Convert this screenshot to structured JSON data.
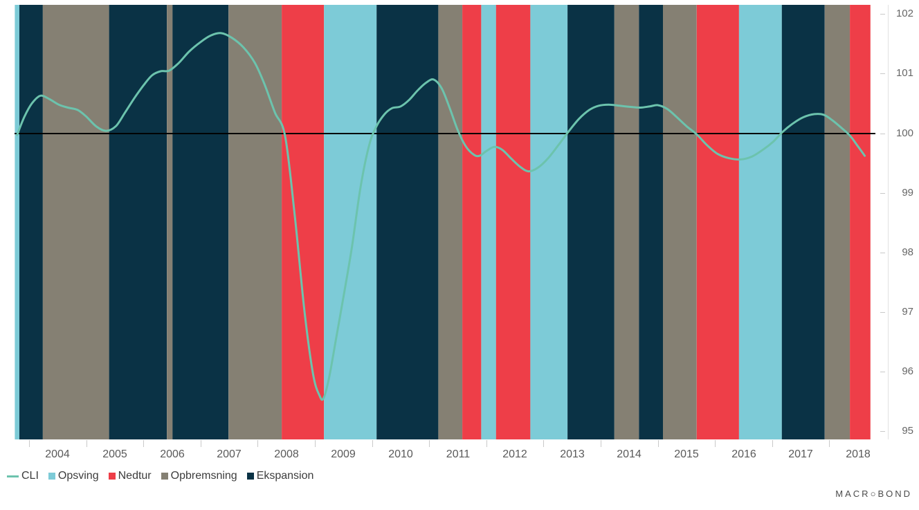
{
  "branding": {
    "prefix": "MACR",
    "circle": "○",
    "suffix": "BOND"
  },
  "legend": {
    "items": [
      {
        "label": "CLI",
        "swatch": "line",
        "color": "#6cc3ad"
      },
      {
        "label": "Opsving",
        "swatch": "square",
        "color": "#7dcbd7"
      },
      {
        "label": "Nedtur",
        "swatch": "square",
        "color": "#ee3e48"
      },
      {
        "label": "Opbremsning",
        "swatch": "square",
        "color": "#858073"
      },
      {
        "label": "Ekspansion",
        "swatch": "square",
        "color": "#0a3245"
      }
    ]
  },
  "chart_data": {
    "type": "line",
    "title": "",
    "xlabel": "",
    "ylabel": "",
    "grid": false,
    "legend_position": "bottom-left",
    "x_axis": {
      "tick_labels": [
        "2004",
        "2005",
        "2006",
        "2007",
        "2008",
        "2009",
        "2010",
        "2011",
        "2012",
        "2013",
        "2014",
        "2015",
        "2016",
        "2017",
        "2018"
      ],
      "range": [
        2003.75,
        2018.72
      ]
    },
    "y_axis": {
      "tick_labels": [
        "102",
        "101",
        "100",
        "99",
        "98",
        "97",
        "96",
        "95"
      ],
      "tick_values": [
        102,
        101,
        100,
        99,
        98,
        97,
        96,
        95
      ],
      "range": [
        94.86,
        102.15
      ],
      "side": "right"
    },
    "reference_line": {
      "value": 100,
      "color": "#000000"
    },
    "phase_colors": {
      "Opsving": "#7dcbd7",
      "Nedtur": "#ee3e48",
      "Opbremsning": "#858073",
      "Ekspansion": "#0a3245"
    },
    "bands": [
      {
        "phase": "Opsving",
        "from": 2003.75,
        "to": 2003.83
      },
      {
        "phase": "Ekspansion",
        "from": 2003.83,
        "to": 2004.24
      },
      {
        "phase": "Opbremsning",
        "from": 2004.24,
        "to": 2005.4
      },
      {
        "phase": "Ekspansion",
        "from": 2005.4,
        "to": 2006.41
      },
      {
        "phase": "Opbremsning",
        "from": 2006.41,
        "to": 2006.51
      },
      {
        "phase": "Ekspansion",
        "from": 2006.51,
        "to": 2007.49
      },
      {
        "phase": "Opbremsning",
        "from": 2007.49,
        "to": 2008.42
      },
      {
        "phase": "Nedtur",
        "from": 2008.42,
        "to": 2009.16
      },
      {
        "phase": "Opsving",
        "from": 2009.16,
        "to": 2010.08
      },
      {
        "phase": "Ekspansion",
        "from": 2010.08,
        "to": 2011.16
      },
      {
        "phase": "Opbremsning",
        "from": 2011.16,
        "to": 2011.58
      },
      {
        "phase": "Nedtur",
        "from": 2011.58,
        "to": 2011.91
      },
      {
        "phase": "Opsving",
        "from": 2011.91,
        "to": 2012.17
      },
      {
        "phase": "Nedtur",
        "from": 2012.17,
        "to": 2012.77
      },
      {
        "phase": "Opsving",
        "from": 2012.77,
        "to": 2013.42
      },
      {
        "phase": "Ekspansion",
        "from": 2013.42,
        "to": 2014.24
      },
      {
        "phase": "Opbremsning",
        "from": 2014.24,
        "to": 2014.67
      },
      {
        "phase": "Ekspansion",
        "from": 2014.67,
        "to": 2015.09
      },
      {
        "phase": "Opbremsning",
        "from": 2015.09,
        "to": 2015.68
      },
      {
        "phase": "Nedtur",
        "from": 2015.68,
        "to": 2016.42
      },
      {
        "phase": "Opsving",
        "from": 2016.42,
        "to": 2017.17
      },
      {
        "phase": "Ekspansion",
        "from": 2017.17,
        "to": 2017.92
      },
      {
        "phase": "Opbremsning",
        "from": 2017.92,
        "to": 2018.36
      },
      {
        "phase": "Nedtur",
        "from": 2018.36,
        "to": 2018.72
      }
    ],
    "series": [
      {
        "name": "CLI",
        "color": "#6cc3ad",
        "width": 3,
        "points": [
          [
            2003.79,
            99.97
          ],
          [
            2003.92,
            100.28
          ],
          [
            2004.05,
            100.5
          ],
          [
            2004.2,
            100.63
          ],
          [
            2004.36,
            100.57
          ],
          [
            2004.52,
            100.48
          ],
          [
            2004.68,
            100.43
          ],
          [
            2004.85,
            100.39
          ],
          [
            2005.0,
            100.28
          ],
          [
            2005.18,
            100.11
          ],
          [
            2005.35,
            100.04
          ],
          [
            2005.52,
            100.12
          ],
          [
            2005.68,
            100.35
          ],
          [
            2005.85,
            100.6
          ],
          [
            2006.0,
            100.8
          ],
          [
            2006.15,
            100.97
          ],
          [
            2006.3,
            101.04
          ],
          [
            2006.45,
            101.05
          ],
          [
            2006.62,
            101.18
          ],
          [
            2006.8,
            101.37
          ],
          [
            2007.0,
            101.53
          ],
          [
            2007.18,
            101.64
          ],
          [
            2007.36,
            101.68
          ],
          [
            2007.55,
            101.6
          ],
          [
            2007.75,
            101.44
          ],
          [
            2007.95,
            101.18
          ],
          [
            2008.12,
            100.82
          ],
          [
            2008.3,
            100.35
          ],
          [
            2008.48,
            99.95
          ],
          [
            2008.65,
            98.6
          ],
          [
            2008.82,
            97.0
          ],
          [
            2008.97,
            95.95
          ],
          [
            2009.08,
            95.6
          ],
          [
            2009.15,
            95.55
          ],
          [
            2009.25,
            95.9
          ],
          [
            2009.38,
            96.6
          ],
          [
            2009.5,
            97.25
          ],
          [
            2009.65,
            98.1
          ],
          [
            2009.8,
            99.1
          ],
          [
            2009.95,
            99.8
          ],
          [
            2010.08,
            100.12
          ],
          [
            2010.22,
            100.32
          ],
          [
            2010.35,
            100.42
          ],
          [
            2010.5,
            100.45
          ],
          [
            2010.65,
            100.56
          ],
          [
            2010.8,
            100.72
          ],
          [
            2010.95,
            100.85
          ],
          [
            2011.08,
            100.9
          ],
          [
            2011.22,
            100.75
          ],
          [
            2011.36,
            100.42
          ],
          [
            2011.5,
            100.05
          ],
          [
            2011.64,
            99.78
          ],
          [
            2011.78,
            99.64
          ],
          [
            2011.88,
            99.62
          ],
          [
            2012.0,
            99.7
          ],
          [
            2012.14,
            99.77
          ],
          [
            2012.28,
            99.72
          ],
          [
            2012.44,
            99.57
          ],
          [
            2012.6,
            99.43
          ],
          [
            2012.74,
            99.36
          ],
          [
            2012.9,
            99.42
          ],
          [
            2013.08,
            99.58
          ],
          [
            2013.26,
            99.8
          ],
          [
            2013.44,
            100.03
          ],
          [
            2013.62,
            100.24
          ],
          [
            2013.8,
            100.39
          ],
          [
            2013.96,
            100.46
          ],
          [
            2014.14,
            100.48
          ],
          [
            2014.34,
            100.46
          ],
          [
            2014.54,
            100.44
          ],
          [
            2014.7,
            100.43
          ],
          [
            2014.86,
            100.45
          ],
          [
            2015.0,
            100.47
          ],
          [
            2015.16,
            100.41
          ],
          [
            2015.32,
            100.28
          ],
          [
            2015.5,
            100.12
          ],
          [
            2015.68,
            99.98
          ],
          [
            2015.86,
            99.8
          ],
          [
            2016.05,
            99.65
          ],
          [
            2016.25,
            99.58
          ],
          [
            2016.45,
            99.56
          ],
          [
            2016.65,
            99.61
          ],
          [
            2016.85,
            99.73
          ],
          [
            2017.02,
            99.86
          ],
          [
            2017.18,
            100.02
          ],
          [
            2017.36,
            100.16
          ],
          [
            2017.55,
            100.27
          ],
          [
            2017.74,
            100.32
          ],
          [
            2017.9,
            100.31
          ],
          [
            2018.05,
            100.22
          ],
          [
            2018.2,
            100.1
          ],
          [
            2018.36,
            99.96
          ],
          [
            2018.5,
            99.78
          ],
          [
            2018.62,
            99.62
          ]
        ]
      }
    ]
  }
}
